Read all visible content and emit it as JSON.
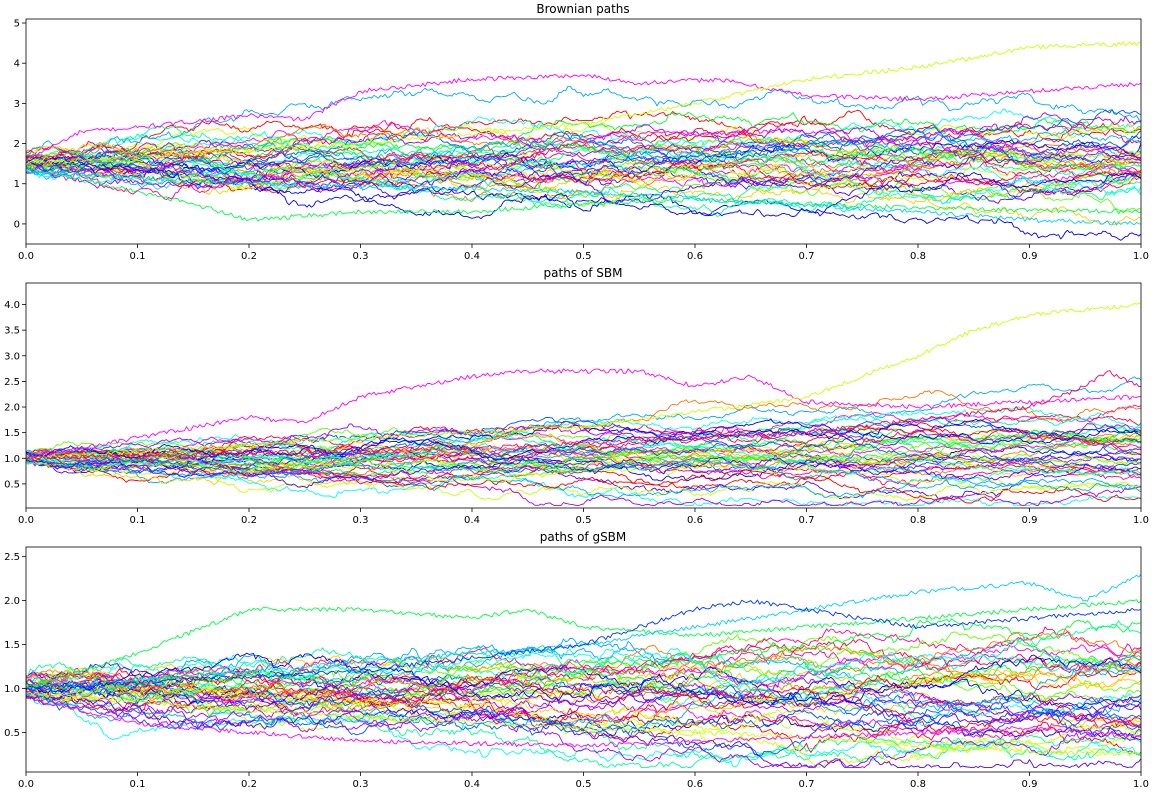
{
  "chart_data": [
    {
      "type": "line",
      "title": "Brownian paths",
      "xlim": [
        0,
        1
      ],
      "ylim": [
        -0.5,
        5.1
      ],
      "xticks": [
        "0.0",
        "0.1",
        "0.2",
        "0.3",
        "0.4",
        "0.5",
        "0.6",
        "0.7",
        "0.8",
        "0.9",
        "1.0"
      ],
      "yticks": [
        "0",
        "1",
        "2",
        "3",
        "4",
        "5"
      ],
      "start_range": [
        1.25,
        1.8
      ],
      "volatility": 0.95,
      "series_count": 45,
      "highlighted_paths": [
        {
          "color": "#ff00ff",
          "points": [
            [
              0,
              1.6
            ],
            [
              0.05,
              2.3
            ],
            [
              0.1,
              2.4
            ],
            [
              0.2,
              2.7
            ],
            [
              0.25,
              2.6
            ],
            [
              0.3,
              3.3
            ],
            [
              0.4,
              3.6
            ],
            [
              0.5,
              3.7
            ],
            [
              0.55,
              3.5
            ],
            [
              0.62,
              3.6
            ],
            [
              0.7,
              3.2
            ],
            [
              0.8,
              3.1
            ],
            [
              1.0,
              3.5
            ]
          ]
        },
        {
          "color": "#ccff00",
          "points": [
            [
              0,
              1.5
            ],
            [
              0.3,
              2.0
            ],
            [
              0.5,
              2.5
            ],
            [
              0.6,
              3.0
            ],
            [
              0.7,
              3.6
            ],
            [
              0.8,
              3.9
            ],
            [
              0.9,
              4.4
            ],
            [
              1.0,
              4.5
            ]
          ]
        },
        {
          "color": "#00ff44",
          "points": [
            [
              0,
              1.4
            ],
            [
              0.15,
              0.5
            ],
            [
              0.2,
              0.1
            ],
            [
              0.3,
              0.3
            ],
            [
              0.4,
              0.3
            ],
            [
              0.5,
              0.5
            ],
            [
              0.6,
              0.6
            ],
            [
              0.8,
              0.4
            ],
            [
              1.0,
              0.3
            ]
          ]
        },
        {
          "color": "#00ccff",
          "points": [
            [
              0,
              1.3
            ],
            [
              0.2,
              1.0
            ],
            [
              0.5,
              0.8
            ],
            [
              0.8,
              0.3
            ],
            [
              0.9,
              0.1
            ],
            [
              1.0,
              0.0
            ]
          ]
        }
      ]
    },
    {
      "type": "line",
      "title": "paths of SBM",
      "xlim": [
        0,
        1
      ],
      "ylim": [
        0.03,
        4.42
      ],
      "xticks": [
        "0.0",
        "0.1",
        "0.2",
        "0.3",
        "0.4",
        "0.5",
        "0.6",
        "0.7",
        "0.8",
        "0.9",
        "1.0"
      ],
      "yticks": [
        "0.5",
        "1.0",
        "1.5",
        "2.0",
        "2.5",
        "3.0",
        "3.5",
        "4.0"
      ],
      "start_range": [
        0.9,
        1.12
      ],
      "volatility": 0.55,
      "series_count": 45,
      "highlighted_paths": [
        {
          "color": "#ff00ff",
          "points": [
            [
              0,
              1.0
            ],
            [
              0.1,
              1.4
            ],
            [
              0.2,
              1.8
            ],
            [
              0.25,
              1.7
            ],
            [
              0.3,
              2.2
            ],
            [
              0.4,
              2.6
            ],
            [
              0.45,
              2.7
            ],
            [
              0.5,
              2.7
            ],
            [
              0.55,
              2.7
            ],
            [
              0.6,
              2.4
            ],
            [
              0.65,
              2.6
            ],
            [
              0.7,
              2.1
            ],
            [
              0.8,
              2.0
            ],
            [
              1.0,
              2.2
            ]
          ]
        },
        {
          "color": "#ccff00",
          "points": [
            [
              0,
              1.0
            ],
            [
              0.3,
              1.4
            ],
            [
              0.5,
              1.6
            ],
            [
              0.6,
              1.9
            ],
            [
              0.7,
              2.2
            ],
            [
              0.8,
              3.0
            ],
            [
              0.85,
              3.5
            ],
            [
              0.9,
              3.8
            ],
            [
              1.0,
              4.0
            ]
          ]
        },
        {
          "color": "#ff0066",
          "points": [
            [
              0,
              1.0
            ],
            [
              0.4,
              1.2
            ],
            [
              0.7,
              1.5
            ],
            [
              0.9,
              2.0
            ],
            [
              0.95,
              2.4
            ],
            [
              0.97,
              2.7
            ],
            [
              1.0,
              2.4
            ]
          ]
        }
      ]
    },
    {
      "type": "line",
      "title": "paths of gSBM",
      "xlim": [
        0,
        1
      ],
      "ylim": [
        0.05,
        2.61
      ],
      "xticks": [
        "0.0",
        "0.1",
        "0.2",
        "0.3",
        "0.4",
        "0.5",
        "0.6",
        "0.7",
        "0.8",
        "0.9",
        "1.0"
      ],
      "yticks": [
        "0.5",
        "1.0",
        "1.5",
        "2.0",
        "2.5"
      ],
      "start_range": [
        0.88,
        1.15
      ],
      "volatility": 0.5,
      "series_count": 45,
      "highlighted_paths": [
        {
          "color": "#00ff44",
          "points": [
            [
              0,
              1.0
            ],
            [
              0.1,
              1.4
            ],
            [
              0.2,
              1.9
            ],
            [
              0.3,
              1.9
            ],
            [
              0.4,
              1.8
            ],
            [
              0.45,
              1.9
            ],
            [
              0.5,
              1.7
            ],
            [
              0.6,
              1.6
            ],
            [
              0.8,
              1.8
            ],
            [
              0.9,
              1.9
            ],
            [
              1.0,
              2.0
            ]
          ]
        },
        {
          "color": "#00ccff",
          "points": [
            [
              0,
              1.0
            ],
            [
              0.3,
              1.3
            ],
            [
              0.5,
              1.5
            ],
            [
              0.65,
              1.8
            ],
            [
              0.8,
              2.1
            ],
            [
              0.9,
              2.2
            ],
            [
              0.95,
              2.0
            ],
            [
              1.0,
              2.3
            ]
          ]
        },
        {
          "color": "#ccff00",
          "points": [
            [
              0,
              0.95
            ],
            [
              0.2,
              0.75
            ],
            [
              0.5,
              0.55
            ],
            [
              0.7,
              0.45
            ],
            [
              0.8,
              0.35
            ],
            [
              0.9,
              0.28
            ],
            [
              1.0,
              0.25
            ]
          ]
        },
        {
          "color": "#ff00ff",
          "points": [
            [
              0,
              0.9
            ],
            [
              0.1,
              0.6
            ],
            [
              0.3,
              0.4
            ],
            [
              0.5,
              0.35
            ],
            [
              0.7,
              0.45
            ],
            [
              0.9,
              0.55
            ],
            [
              1.0,
              0.45
            ]
          ]
        },
        {
          "color": "#0033ff",
          "points": [
            [
              0,
              1.0
            ],
            [
              0.3,
              1.2
            ],
            [
              0.5,
              1.5
            ],
            [
              0.6,
              1.9
            ],
            [
              0.65,
              2.0
            ],
            [
              0.8,
              1.7
            ],
            [
              1.0,
              1.9
            ]
          ]
        }
      ]
    }
  ],
  "colors": [
    "#ff0000",
    "#ff7700",
    "#ffcc00",
    "#ccff00",
    "#66ff00",
    "#00ff33",
    "#00ff99",
    "#00ffee",
    "#00aaff",
    "#0055ff",
    "#0000ff",
    "#5500ff",
    "#aa00ff",
    "#ff00ff",
    "#ff0099",
    "#ff0044"
  ]
}
